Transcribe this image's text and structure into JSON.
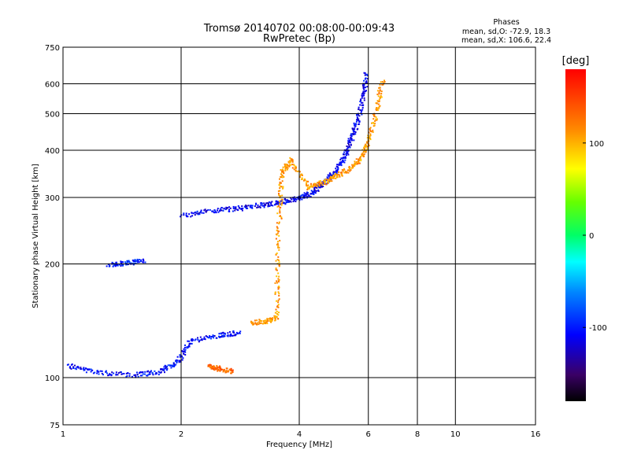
{
  "chart_data": {
    "type": "scatter",
    "title": "Tromsø 20140702 00:08:00-00:09:43",
    "subtitle": "RwPretec (Bp)",
    "xlabel": "Frequency [MHz]",
    "ylabel": "Stationary phase Virtual Height [km]",
    "x_scale": "log",
    "y_scale": "log",
    "xlim": [
      1,
      16
    ],
    "ylim": [
      75,
      750
    ],
    "x_ticks": [
      1,
      2,
      4,
      6,
      8,
      10,
      16
    ],
    "y_ticks": [
      75,
      100,
      200,
      300,
      400,
      500,
      600,
      750
    ],
    "grid": true,
    "phases": {
      "title": "Phases",
      "line_o": "mean, sd,O: -72.9, 18.3",
      "line_x": "mean, sd,X: 106.6, 22.4"
    },
    "colorbar": {
      "label": "[deg]",
      "min": -180,
      "max": 180,
      "ticks": [
        100,
        0,
        -100
      ],
      "colormap": "rainbow"
    },
    "series": [
      {
        "mode": "O",
        "color_value": -105,
        "trace": [
          [
            1.02,
            108
          ],
          [
            1.2,
            104
          ],
          [
            1.5,
            102
          ],
          [
            1.75,
            104
          ],
          [
            1.95,
            110
          ],
          [
            2.1,
            125
          ],
          [
            2.5,
            130
          ],
          [
            2.8,
            132
          ]
        ],
        "note": "lower O-trace"
      },
      {
        "mode": "O",
        "color_value": -110,
        "trace": [
          [
            2.0,
            270
          ],
          [
            2.4,
            278
          ],
          [
            2.8,
            282
          ],
          [
            3.2,
            288
          ],
          [
            3.6,
            293
          ],
          [
            4.0,
            300
          ],
          [
            4.3,
            310
          ],
          [
            4.6,
            330
          ],
          [
            4.9,
            350
          ],
          [
            5.2,
            385
          ],
          [
            5.4,
            430
          ],
          [
            5.6,
            480
          ],
          [
            5.8,
            560
          ],
          [
            5.9,
            640
          ]
        ]
      },
      {
        "mode": "O",
        "color_value": -95,
        "trace": [
          [
            1.3,
            200
          ],
          [
            1.45,
            202
          ],
          [
            1.6,
            205
          ]
        ]
      },
      {
        "mode": "X",
        "color_value": 110,
        "trace": [
          [
            3.0,
            140
          ],
          [
            3.3,
            142
          ],
          [
            3.5,
            145
          ],
          [
            3.5,
            200
          ],
          [
            3.55,
            280
          ],
          [
            3.6,
            350
          ],
          [
            3.8,
            380
          ],
          [
            4.2,
            320
          ],
          [
            4.6,
            330
          ],
          [
            5.0,
            345
          ],
          [
            5.4,
            360
          ],
          [
            5.8,
            390
          ],
          [
            6.0,
            430
          ],
          [
            6.3,
            520
          ],
          [
            6.5,
            620
          ]
        ]
      },
      {
        "mode": "X",
        "color_value": 130,
        "trace": [
          [
            2.35,
            108
          ],
          [
            2.5,
            106
          ],
          [
            2.7,
            104
          ]
        ]
      }
    ]
  }
}
